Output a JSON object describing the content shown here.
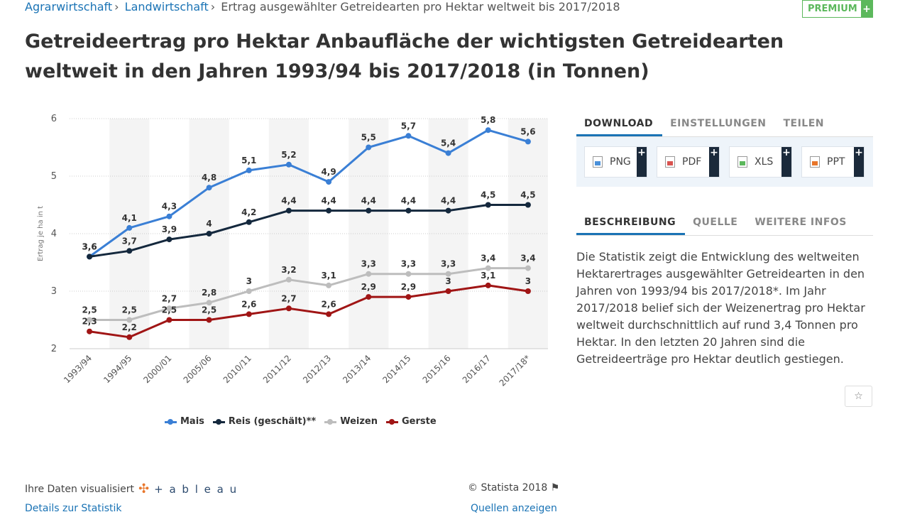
{
  "breadcrumb": {
    "items": [
      "Agrarwirtschaft",
      "Landwirtschaft"
    ],
    "current": "Ertrag ausgewählter Getreidearten pro Hektar weltweit bis 2017/2018",
    "separator": "›"
  },
  "premium": {
    "label": "PREMIUM",
    "plus": "+"
  },
  "title": "Getreideertrag pro Hektar Anbaufläche der wichtigsten Getreidearten weltweit in den Jahren 1993/94 bis 2017/2018 (in Tonnen)",
  "colors": {
    "mais": "#3a7fd5",
    "reis": "#14283d",
    "weizen": "#bdbdbd",
    "gerste": "#a01515",
    "accent": "#1a73b5"
  },
  "chart_data": {
    "type": "line",
    "title": "",
    "xlabel": "",
    "ylabel": "Ertrag je ha in t",
    "ylim": [
      2,
      6
    ],
    "yticks": [
      2,
      3,
      4,
      5,
      6
    ],
    "grid": true,
    "legend_position": "bottom",
    "categories": [
      "1993/94",
      "1994/95",
      "2000/01",
      "2005/06",
      "2010/11",
      "2011/12",
      "2012/13",
      "2013/14",
      "2014/15",
      "2015/16",
      "2016/17",
      "2017/18*"
    ],
    "series": [
      {
        "name": "Mais",
        "color": "#3a7fd5",
        "values": [
          3.6,
          4.1,
          4.3,
          4.8,
          5.1,
          5.2,
          4.9,
          5.5,
          5.7,
          5.4,
          5.8,
          5.6
        ],
        "labels": [
          "3,6",
          "4,1",
          "4,3",
          "4,8",
          "5,1",
          "5,2",
          "4,9",
          "5,5",
          "5,7",
          "5,4",
          "5,8",
          "5,6"
        ]
      },
      {
        "name": "Reis (geschält)**",
        "color": "#14283d",
        "values": [
          3.6,
          3.7,
          3.9,
          4.0,
          4.2,
          4.4,
          4.4,
          4.4,
          4.4,
          4.4,
          4.5,
          4.5
        ],
        "labels": [
          "3,6",
          "3,7",
          "3,9",
          "4",
          "4,2",
          "4,4",
          "4,4",
          "4,4",
          "4,4",
          "4,4",
          "4,5",
          "4,5"
        ]
      },
      {
        "name": "Weizen",
        "color": "#bdbdbd",
        "values": [
          2.5,
          2.5,
          2.7,
          2.8,
          3.0,
          3.2,
          3.1,
          3.3,
          3.3,
          3.3,
          3.4,
          3.4
        ],
        "labels": [
          "2,5",
          "2,5",
          "2,7",
          "2,8",
          "3",
          "3,2",
          "3,1",
          "3,3",
          "3,3",
          "3,3",
          "3,4",
          "3,4"
        ]
      },
      {
        "name": "Gerste",
        "color": "#a01515",
        "values": [
          2.3,
          2.2,
          2.5,
          2.5,
          2.6,
          2.7,
          2.6,
          2.9,
          2.9,
          3.0,
          3.1,
          3.0
        ],
        "labels": [
          "2,3",
          "2,2",
          "2,5",
          "2,5",
          "2,6",
          "2,7",
          "2,6",
          "2,9",
          "2,9",
          "3",
          "3,1",
          "3"
        ]
      }
    ]
  },
  "right_panel": {
    "tabs": [
      "DOWNLOAD",
      "EINSTELLUNGEN",
      "TEILEN"
    ],
    "downloads": [
      {
        "label": "PNG",
        "icon": "png-file-icon",
        "color": "#4a90d9"
      },
      {
        "label": "PDF",
        "icon": "pdf-file-icon",
        "color": "#d9534f"
      },
      {
        "label": "XLS",
        "icon": "xls-file-icon",
        "color": "#5cb85c"
      },
      {
        "label": "PPT",
        "icon": "ppt-file-icon",
        "color": "#e8762b"
      }
    ],
    "download_plus": "+",
    "info_tabs": [
      "BESCHREIBUNG",
      "QUELLE",
      "WEITERE INFOS"
    ],
    "description": "Die Statistik zeigt die Entwicklung des weltweiten Hektarertrages ausgewählter Getreidearten in den Jahren von 1993/94 bis 2017/2018*. Im Jahr 2017/2018 belief sich der Weizenertrag pro Hektar weltweit durchschnittlich auf rund 3,4 Tonnen pro Hektar. In den letzten 20 Jahren sind die Getreideerträge pro Hektar deutlich gestiegen.",
    "star_icon": "☆"
  },
  "footer": {
    "visualized_by": "Ihre Daten visualisiert",
    "tableau": "+ a b l e a u",
    "tableau_mark": "✣",
    "details_link": "Details zur Statistik",
    "copyright": "© Statista 2018",
    "flag_icon": "⚑",
    "sources_link": "Quellen anzeigen"
  }
}
